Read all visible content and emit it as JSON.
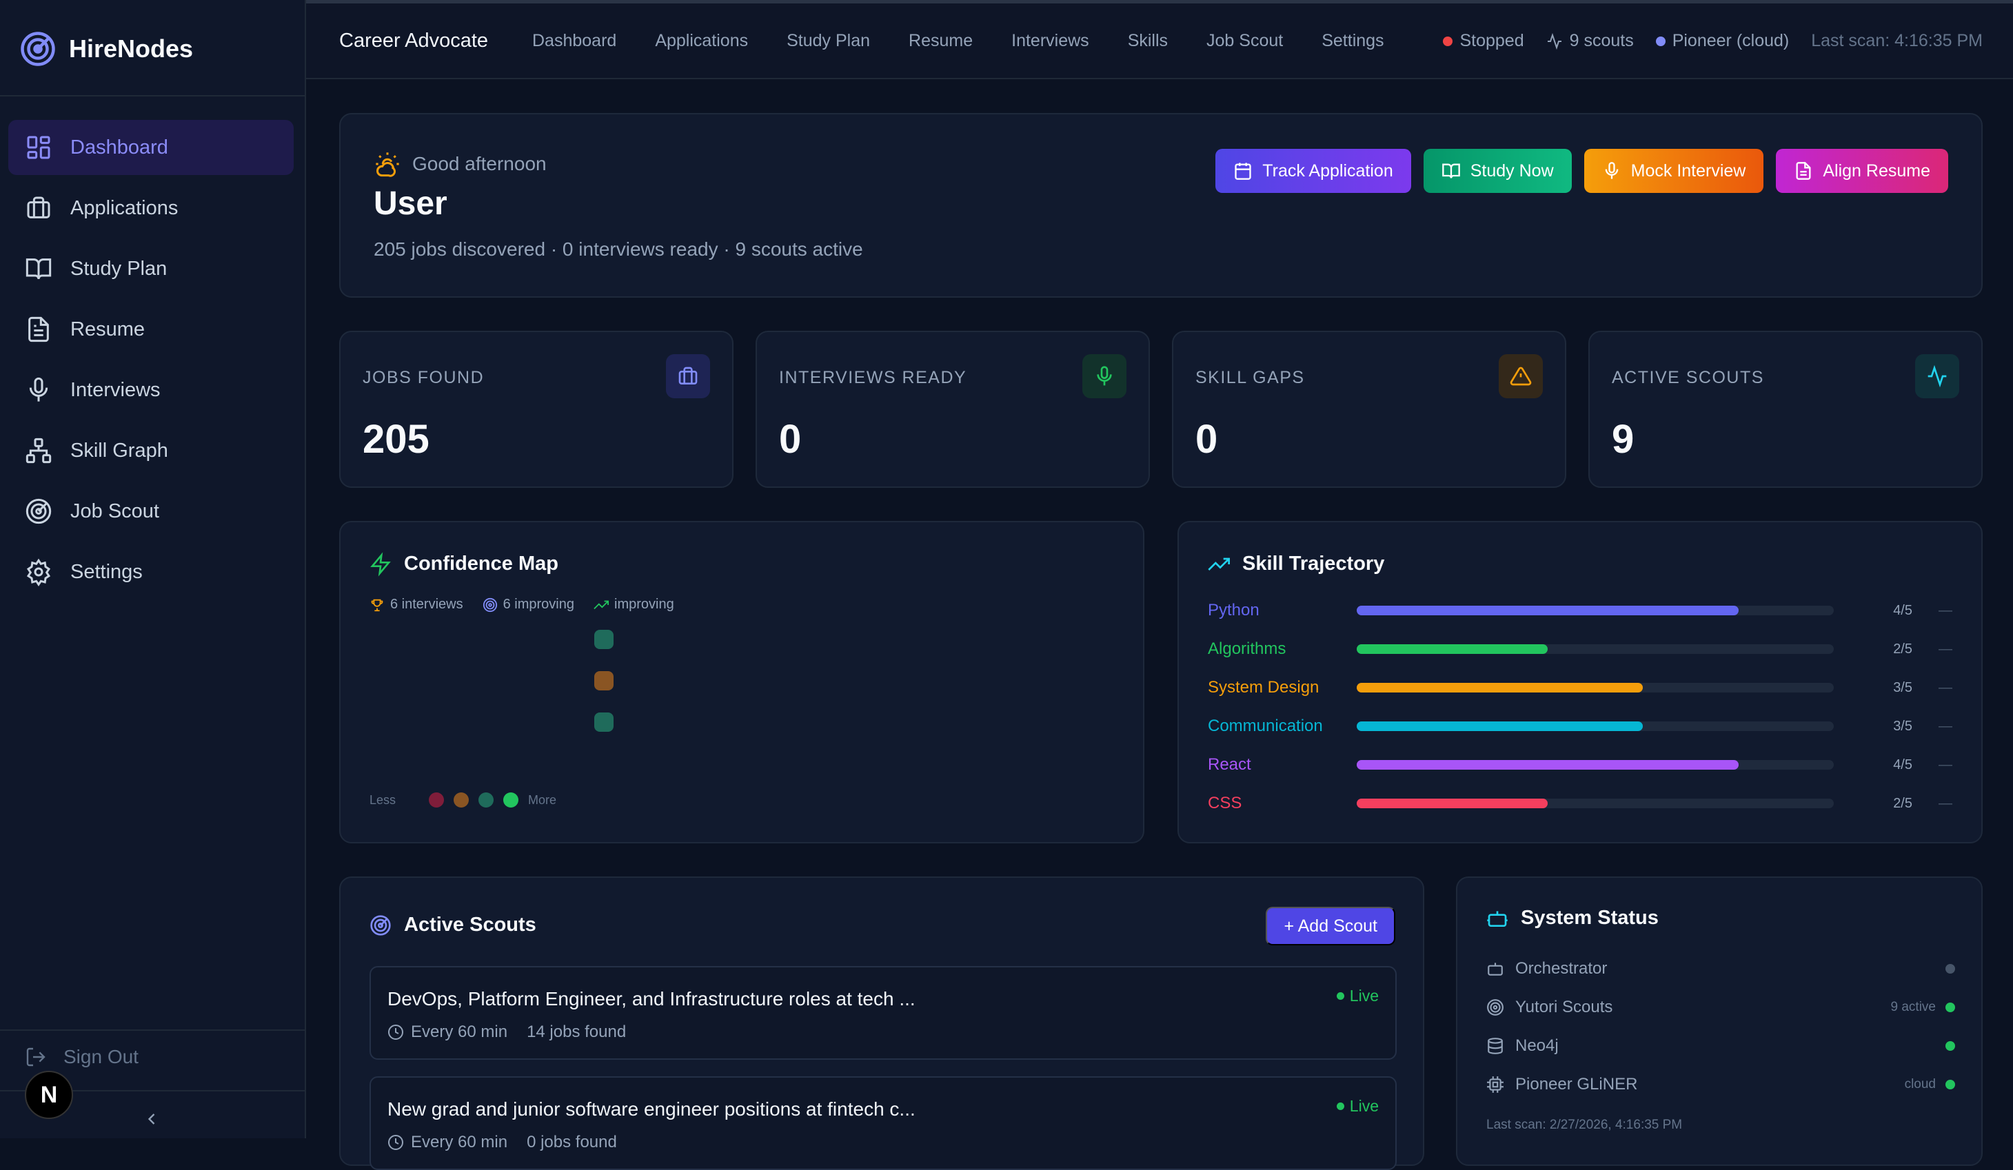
{
  "brand": {
    "name": "HireNodes"
  },
  "sidebar": {
    "items": [
      {
        "label": "Dashboard",
        "icon": "dashboard-icon",
        "active": true
      },
      {
        "label": "Applications",
        "icon": "briefcase-icon"
      },
      {
        "label": "Study Plan",
        "icon": "book-icon"
      },
      {
        "label": "Resume",
        "icon": "document-icon"
      },
      {
        "label": "Interviews",
        "icon": "microphone-icon"
      },
      {
        "label": "Skill Graph",
        "icon": "network-icon"
      },
      {
        "label": "Job Scout",
        "icon": "radar-icon"
      },
      {
        "label": "Settings",
        "icon": "gear-icon"
      }
    ],
    "sign_out": "Sign Out",
    "badge": "N"
  },
  "header": {
    "title": "Career Advocate",
    "nav": [
      "Dashboard",
      "Applications",
      "Study Plan",
      "Resume",
      "Interviews",
      "Skills",
      "Job Scout",
      "Settings"
    ],
    "status": {
      "state": "Stopped",
      "scouts": "9 scouts",
      "engine": "Pioneer (cloud)",
      "last_scan": "Last scan: 4:16:35 PM"
    }
  },
  "greeting": {
    "salutation": "Good afternoon",
    "name": "User",
    "summary": "205 jobs discovered · 0 interviews ready · 9 scouts active",
    "actions": [
      "Track Application",
      "Study Now",
      "Mock Interview",
      "Align Resume"
    ]
  },
  "stats": [
    {
      "label": "JOBS FOUND",
      "value": "205",
      "icon": "briefcase-icon",
      "color": "#6366f1"
    },
    {
      "label": "INTERVIEWS READY",
      "value": "0",
      "icon": "microphone-icon",
      "color": "#22c55e"
    },
    {
      "label": "SKILL GAPS",
      "value": "0",
      "icon": "warning-icon",
      "color": "#f59e0b"
    },
    {
      "label": "ACTIVE SCOUTS",
      "value": "9",
      "icon": "activity-icon",
      "color": "#22d3ee"
    }
  ],
  "confidence": {
    "title": "Confidence Map",
    "legend": [
      "6 interviews",
      "6 improving",
      "improving"
    ],
    "scale_less": "Less",
    "scale_more": "More"
  },
  "trajectory": {
    "title": "Skill Trajectory",
    "skills": [
      {
        "name": "Python",
        "score": "4/5",
        "level": 0.8,
        "color": "#6366f1",
        "trend": "—"
      },
      {
        "name": "Algorithms",
        "score": "2/5",
        "level": 0.4,
        "color": "#22c55e",
        "trend": "—"
      },
      {
        "name": "System Design",
        "score": "3/5",
        "level": 0.6,
        "color": "#f59e0b",
        "trend": "—"
      },
      {
        "name": "Communication",
        "score": "3/5",
        "level": 0.6,
        "color": "#06b6d4",
        "trend": "—"
      },
      {
        "name": "React",
        "score": "4/5",
        "level": 0.8,
        "color": "#a855f7",
        "trend": "—"
      },
      {
        "name": "CSS",
        "score": "2/5",
        "level": 0.4,
        "color": "#f43f5e",
        "trend": "—"
      }
    ]
  },
  "scouts": {
    "title": "Active Scouts",
    "add_label": "+ Add Scout",
    "items": [
      {
        "title": "DevOps, Platform Engineer, and Infrastructure roles at tech ...",
        "status": "Live",
        "frequency": "Every 60 min",
        "found": "14 jobs found"
      },
      {
        "title": "New grad and junior software engineer positions at fintech c...",
        "status": "Live",
        "frequency": "Every 60 min",
        "found": "0 jobs found"
      }
    ]
  },
  "system": {
    "title": "System Status",
    "rows": [
      {
        "label": "Orchestrator",
        "icon": "robot-icon",
        "extra": "",
        "color": "#475569"
      },
      {
        "label": "Yutori Scouts",
        "icon": "radar-icon",
        "extra": "9 active",
        "color": "#22c55e"
      },
      {
        "label": "Neo4j",
        "icon": "database-icon",
        "extra": "",
        "color": "#22c55e"
      },
      {
        "label": "Pioneer GLiNER",
        "icon": "chip-icon",
        "extra": "cloud",
        "color": "#22c55e"
      }
    ],
    "last_scan": "Last scan: 2/27/2026, 4:16:35 PM"
  }
}
